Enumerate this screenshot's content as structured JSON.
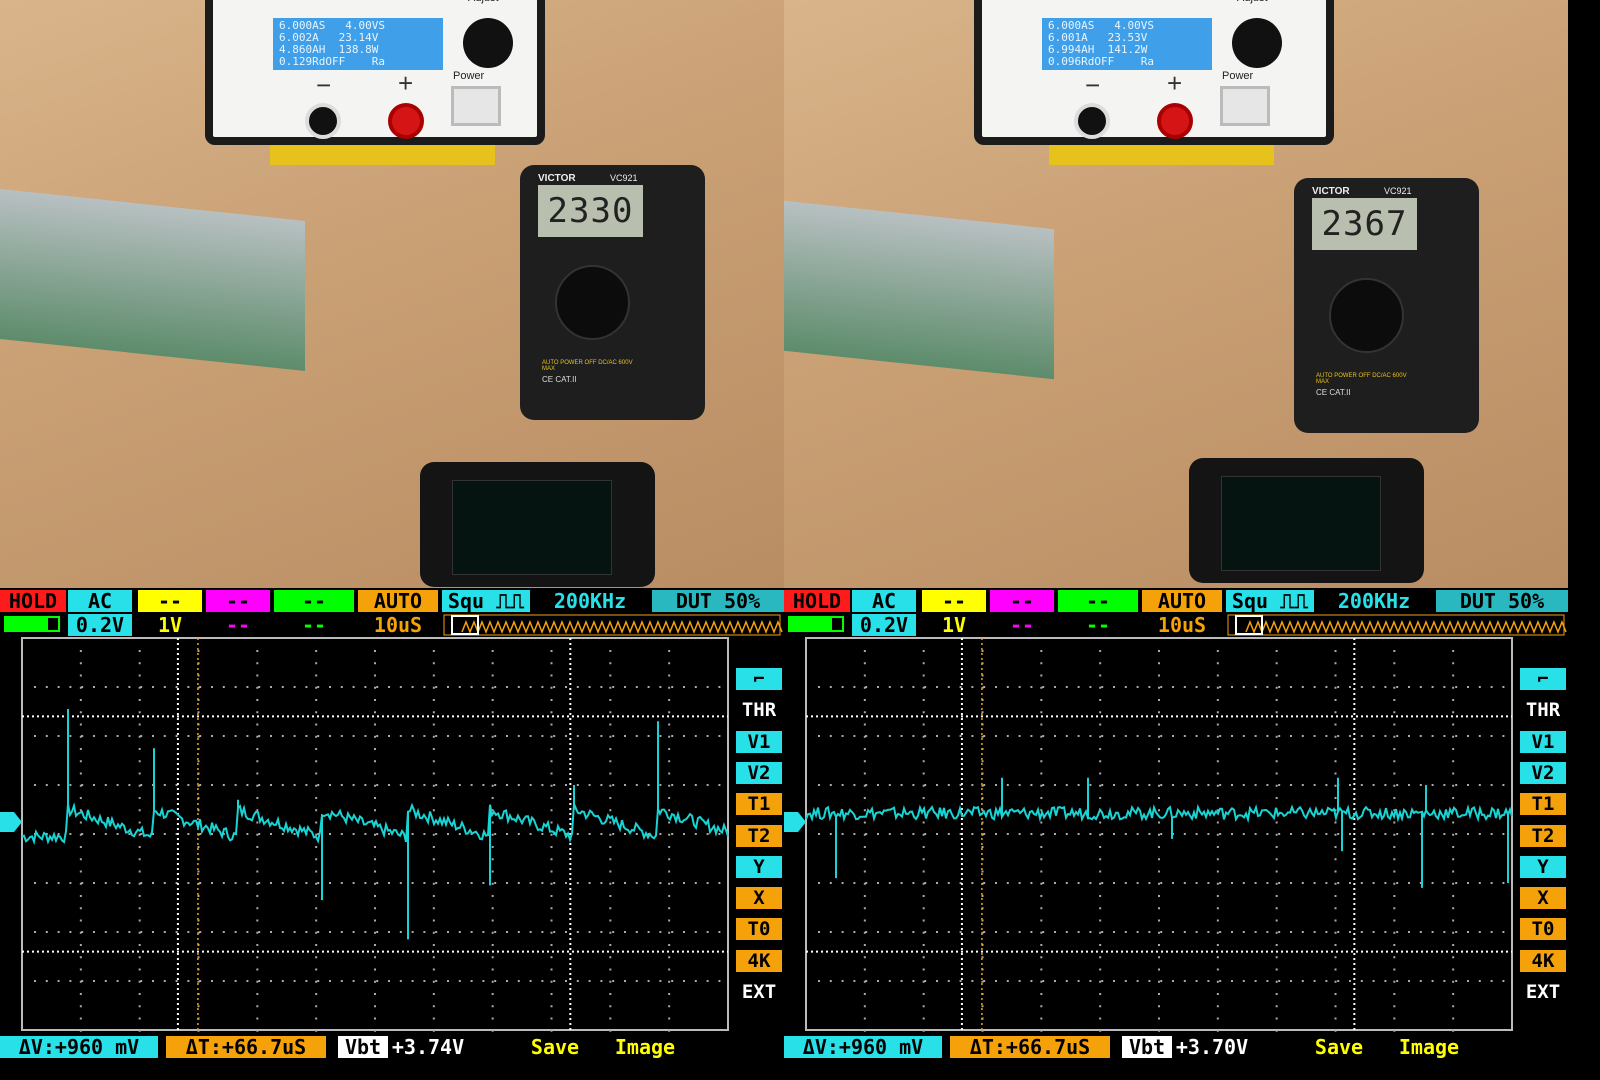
{
  "colors": {
    "trace": "#19d4d4",
    "cyan": "#27e0e8",
    "orange": "#f5a20a",
    "yellow": "#ffff00",
    "magenta": "#ff00ff",
    "green": "#00ff00",
    "red": "#ff1b1b",
    "grid": "#cfcfcf"
  },
  "photos": [
    {
      "psu": {
        "lines": [
          "6.000AS   4.00VS",
          "6.002A   23.14V",
          "4.860AH  138.8W",
          "0.129RdOFF    Ra"
        ],
        "adjust": "Adjust",
        "power": "Power",
        "minus": "−",
        "plus": "+"
      },
      "multimeter": {
        "brand": "VICTOR",
        "model": "VC921",
        "reading": "2330",
        "warning": "AUTO POWER OFF DC/AC 600V MAX",
        "cat": "CE CAT.II"
      }
    },
    {
      "psu": {
        "lines": [
          "6.000AS   4.00VS",
          "6.001A   23.53V",
          "6.994AH  141.2W",
          "0.096RdOFF    Ra"
        ],
        "adjust": "Adjust",
        "power": "Power",
        "minus": "−",
        "plus": "+"
      },
      "multimeter": {
        "brand": "VICTOR",
        "model": "VC921",
        "reading": "2367",
        "warning": "AUTO POWER OFF DC/AC 600V MAX",
        "cat": "CE CAT.II"
      }
    }
  ],
  "scopes": [
    {
      "status": "HOLD",
      "coupling": "AC",
      "ch_b": "--",
      "ch_c": "--",
      "ch_d": "--",
      "trig_mode": "AUTO",
      "wave": "Squ ⎍⎍",
      "freq": "200KHz",
      "duty": "DUT 50%",
      "vdiv": "0.2V",
      "probe": "1V",
      "ch_c2": "--",
      "ch_d2": "--",
      "timebase": "10uS",
      "side_buttons": [
        "⌐",
        "THR",
        "V1",
        "V2",
        "T1",
        "T2",
        "Y",
        "X",
        "T0",
        "4K",
        "EXT"
      ],
      "dv": "ΔV:+960 mV",
      "dt": "ΔT:+66.7uS",
      "vbt_label": "Vbt",
      "vbt": "+3.74V",
      "save": "Save",
      "image": "Image",
      "battery_level": 0.8,
      "cursors": {
        "v1": 0.48,
        "v2": -0.48,
        "t1": 26.5,
        "t2": 93.2,
        "trig_t": 29.9
      },
      "trace": {
        "sawtooth": true,
        "step_v": 0.1,
        "end_v": -0.01,
        "base_v": 0.02,
        "events": [
          {
            "t": 7.8,
            "v": 0.51
          },
          {
            "t": 22.1,
            "v": 0.35
          },
          {
            "t": 36.4,
            "v": 0.14
          },
          {
            "t": 50.7,
            "v": -0.27
          },
          {
            "t": 65.3,
            "v": -0.43
          },
          {
            "t": 79.5,
            "v": -0.21
          },
          {
            "t": 93.8,
            "v": 0.2
          },
          {
            "t": 108.1,
            "v": 0.46
          }
        ]
      }
    },
    {
      "status": "HOLD",
      "coupling": "AC",
      "ch_b": "--",
      "ch_c": "--",
      "ch_d": "--",
      "trig_mode": "AUTO",
      "wave": "Squ ⎍⎍",
      "freq": "200KHz",
      "duty": "DUT 50%",
      "vdiv": "0.2V",
      "probe": "1V",
      "ch_c2": "--",
      "ch_d2": "--",
      "timebase": "10uS",
      "side_buttons": [
        "⌐",
        "THR",
        "V1",
        "V2",
        "T1",
        "T2",
        "Y",
        "X",
        "T0",
        "4K",
        "EXT"
      ],
      "dv": "ΔV:+960 mV",
      "dt": "ΔT:+66.7uS",
      "vbt_label": "Vbt",
      "vbt": "+3.70V",
      "save": "Save",
      "image": "Image",
      "battery_level": 0.8,
      "cursors": {
        "v1": 0.48,
        "v2": -0.48,
        "t1": 26.5,
        "t2": 93.2,
        "trig_t": 29.9
      },
      "trace": {
        "sawtooth": false,
        "step_v": 0.085,
        "end_v": 0.085,
        "base_v": 0.085,
        "events": [
          {
            "t": 4.8,
            "v": -0.18
          },
          {
            "t": 33.3,
            "v": 0.23
          },
          {
            "t": 47.9,
            "v": 0.23
          },
          {
            "t": 62.2,
            "v": -0.02
          },
          {
            "t": 90.4,
            "v": 0.23
          },
          {
            "t": 90.8,
            "v": -0.07
          },
          {
            "t": 104.7,
            "v": -0.22
          },
          {
            "t": 105.2,
            "v": 0.2
          },
          {
            "t": 119.3,
            "v": -0.2
          }
        ]
      }
    }
  ]
}
